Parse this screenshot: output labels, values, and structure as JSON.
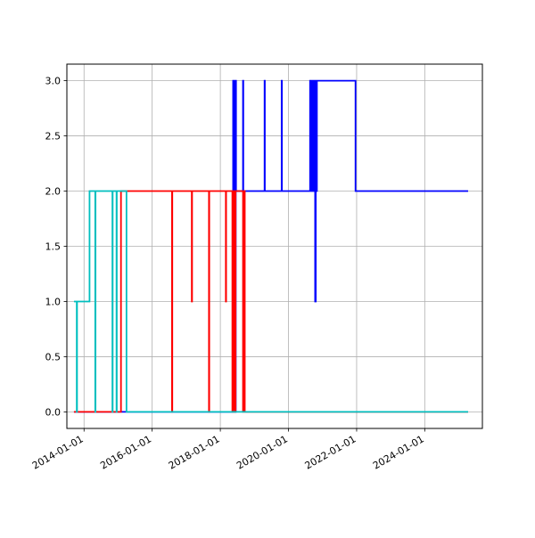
{
  "chart_data": {
    "type": "line",
    "xlim": [
      "2013-07-01",
      "2025-09-10"
    ],
    "ylim": [
      -0.15,
      3.15
    ],
    "grid": true,
    "x_ticks": [
      "2014-01-01",
      "2016-01-01",
      "2018-01-01",
      "2020-01-01",
      "2022-01-01",
      "2024-01-01"
    ],
    "y_ticks": [
      "0.0",
      "0.5",
      "1.0",
      "1.5",
      "2.0",
      "2.5",
      "3.0"
    ],
    "series": [
      {
        "color": "#0000ff",
        "drawstyle": "steps-post",
        "points": [
          [
            "2013-09-15",
            0
          ],
          [
            "2018-05-15",
            0
          ],
          [
            "2018-05-18",
            3
          ],
          [
            "2018-05-21",
            0
          ],
          [
            "2018-05-25",
            3
          ],
          [
            "2018-05-28",
            0
          ],
          [
            "2018-06-01",
            3
          ],
          [
            "2018-06-04",
            0
          ],
          [
            "2018-06-08",
            3
          ],
          [
            "2018-06-11",
            0
          ],
          [
            "2018-06-15",
            3
          ],
          [
            "2018-06-18",
            2
          ],
          [
            "2018-09-01",
            3
          ],
          [
            "2018-09-04",
            2
          ],
          [
            "2019-04-20",
            3
          ],
          [
            "2019-04-23",
            2
          ],
          [
            "2019-10-20",
            3
          ],
          [
            "2019-10-23",
            2
          ],
          [
            "2020-08-20",
            3
          ],
          [
            "2020-08-23",
            2
          ],
          [
            "2020-09-01",
            3
          ],
          [
            "2020-09-04",
            2
          ],
          [
            "2020-09-20",
            3
          ],
          [
            "2020-09-23",
            2
          ],
          [
            "2020-10-10",
            3
          ],
          [
            "2020-10-13",
            1
          ],
          [
            "2020-10-20",
            3
          ],
          [
            "2020-10-23",
            2
          ],
          [
            "2020-11-01",
            3
          ],
          [
            "2021-12-20",
            2
          ],
          [
            "2025-04-10",
            2
          ]
        ]
      },
      {
        "color": "#ff0000",
        "drawstyle": "steps-post",
        "points": [
          [
            "2013-09-15",
            0
          ],
          [
            "2015-01-20",
            0
          ],
          [
            "2015-02-01",
            2
          ],
          [
            "2016-08-01",
            0
          ],
          [
            "2016-08-04",
            2
          ],
          [
            "2017-03-01",
            1
          ],
          [
            "2017-03-04",
            2
          ],
          [
            "2017-09-01",
            0
          ],
          [
            "2017-09-04",
            2
          ],
          [
            "2018-03-01",
            1
          ],
          [
            "2018-03-04",
            2
          ],
          [
            "2018-05-10",
            0
          ],
          [
            "2018-05-13",
            2
          ],
          [
            "2018-05-20",
            0
          ],
          [
            "2018-05-23",
            2
          ],
          [
            "2018-06-01",
            0
          ],
          [
            "2018-06-04",
            2
          ],
          [
            "2018-06-10",
            0
          ],
          [
            "2018-06-13",
            2
          ],
          [
            "2018-09-01",
            0
          ],
          [
            "2018-09-04",
            2
          ],
          [
            "2018-09-20",
            0
          ],
          [
            "2025-04-10",
            0
          ]
        ]
      },
      {
        "color": "#00bfbf",
        "drawstyle": "steps-post",
        "points": [
          [
            "2013-09-15",
            1
          ],
          [
            "2013-10-15",
            0
          ],
          [
            "2013-10-18",
            1
          ],
          [
            "2014-03-01",
            2
          ],
          [
            "2014-05-01",
            0
          ],
          [
            "2014-05-04",
            2
          ],
          [
            "2014-11-01",
            0
          ],
          [
            "2014-11-04",
            2
          ],
          [
            "2014-12-15",
            0
          ],
          [
            "2014-12-18",
            2
          ],
          [
            "2015-04-01",
            0
          ],
          [
            "2025-04-10",
            0
          ]
        ]
      }
    ]
  }
}
